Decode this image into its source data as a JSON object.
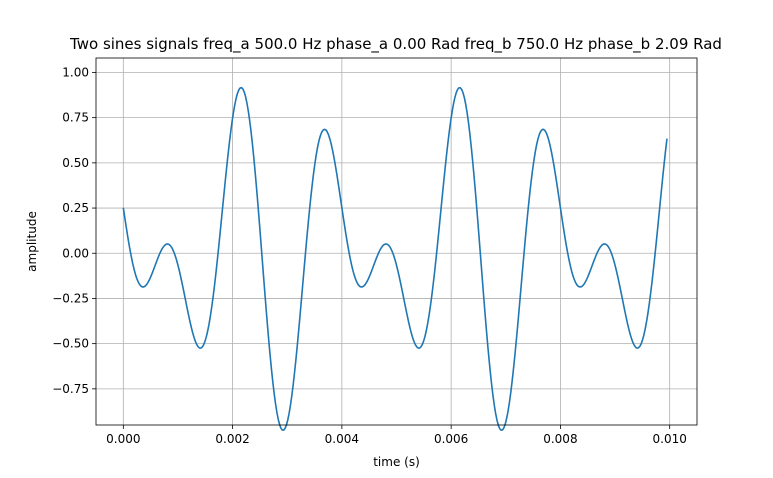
{
  "chart_data": {
    "type": "line",
    "title": "Two sines signals freq_a 500.0 Hz phase_a 0.00 Rad freq_b 750.0 Hz phase_b 2.09 Rad",
    "xlabel": "time (s)",
    "ylabel": "amplitude",
    "xlim": [
      -0.0005,
      0.0105
    ],
    "ylim": [
      -0.95,
      1.08
    ],
    "grid": true,
    "line_color": "#1f77b4",
    "signal": {
      "freq_a": 500.0,
      "phase_a": 0.0,
      "amp_a": 0.5,
      "freq_b": 750.0,
      "phase_b": 2.09,
      "amp_b": 0.5,
      "t_start": 0.0,
      "t_end": 0.00995,
      "samples": 400
    },
    "x_ticks": [
      {
        "value": 0.0,
        "label": "0.000"
      },
      {
        "value": 0.002,
        "label": "0.002"
      },
      {
        "value": 0.004,
        "label": "0.004"
      },
      {
        "value": 0.006,
        "label": "0.006"
      },
      {
        "value": 0.008,
        "label": "0.008"
      },
      {
        "value": 0.01,
        "label": "0.010"
      }
    ],
    "y_ticks": [
      {
        "value": 1.0,
        "label": "1.00"
      },
      {
        "value": 0.75,
        "label": "0.75"
      },
      {
        "value": 0.5,
        "label": "0.50"
      },
      {
        "value": 0.25,
        "label": "0.25"
      },
      {
        "value": 0.0,
        "label": "0.00"
      },
      {
        "value": -0.25,
        "label": "−0.25"
      },
      {
        "value": -0.5,
        "label": "−0.50"
      },
      {
        "value": -0.75,
        "label": "−0.75"
      }
    ]
  }
}
